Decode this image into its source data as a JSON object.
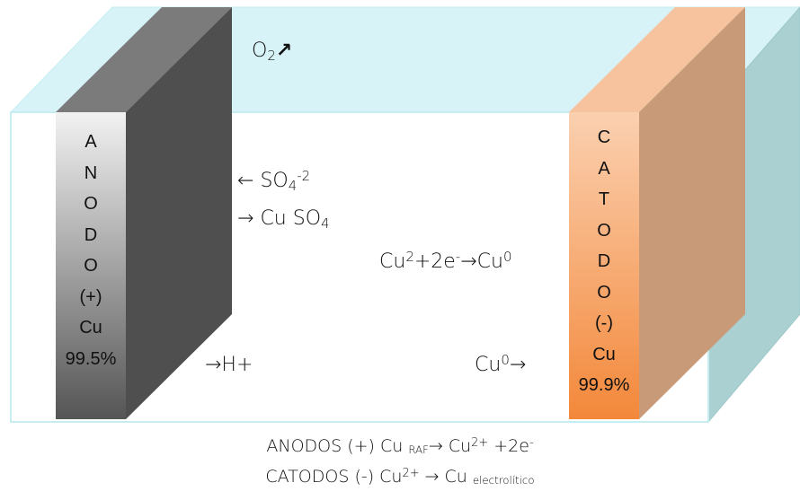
{
  "diagram": {
    "gas_label": {
      "text": "O",
      "sub": "2",
      "arrow": "↗"
    },
    "anode": {
      "letters": [
        "A",
        "N",
        "O",
        "D",
        "O",
        "(+)",
        "Cu",
        "99.5%"
      ]
    },
    "cathode": {
      "letters": [
        "C",
        "A",
        "T",
        "O",
        "D",
        "O",
        "(-)",
        "Cu",
        "99.9%"
      ]
    },
    "sulfate_label": {
      "arrow": "← ",
      "text": "SO",
      "sub": "4",
      "sup": "-2"
    },
    "copper_sulfate_label": {
      "arrow": "→ ",
      "text": "Cu SO",
      "sub": "4"
    },
    "reaction_label": {
      "a": "Cu",
      "a_sup": "2",
      "b": "+2e",
      "b_sup": "-",
      "c": "→Cu",
      "c_sup": "0"
    },
    "hydrogen_label": {
      "text": "→H+"
    },
    "copper_deposit_label": {
      "text": "Cu",
      "sup": "0",
      "arrow": "→"
    },
    "footer": {
      "line1": {
        "a": "ANODOS (+) Cu ",
        "sub": "RAF",
        "b": "→ Cu",
        "sup1": "2+",
        "c": " +2e",
        "sup2": "-"
      },
      "line2": {
        "a": "CATODOS (-) Cu",
        "sup": "2+",
        "b": "  → Cu ",
        "sub": "electrolítico"
      }
    },
    "colors": {
      "tank_face": "#d7f3f7",
      "tank_edge": "#b9e9ee",
      "tank_side": "#aad0d2",
      "anode_front_top": "#f2f2f2",
      "anode_front_bottom": "#555555",
      "anode_side": "#4f4f4f",
      "anode_top": "#7b7b7b",
      "cathode_front_top": "#fbd0b0",
      "cathode_front_bottom": "#f3883a",
      "cathode_side": "#c89a77",
      "cathode_top": "#f7c39e"
    }
  }
}
